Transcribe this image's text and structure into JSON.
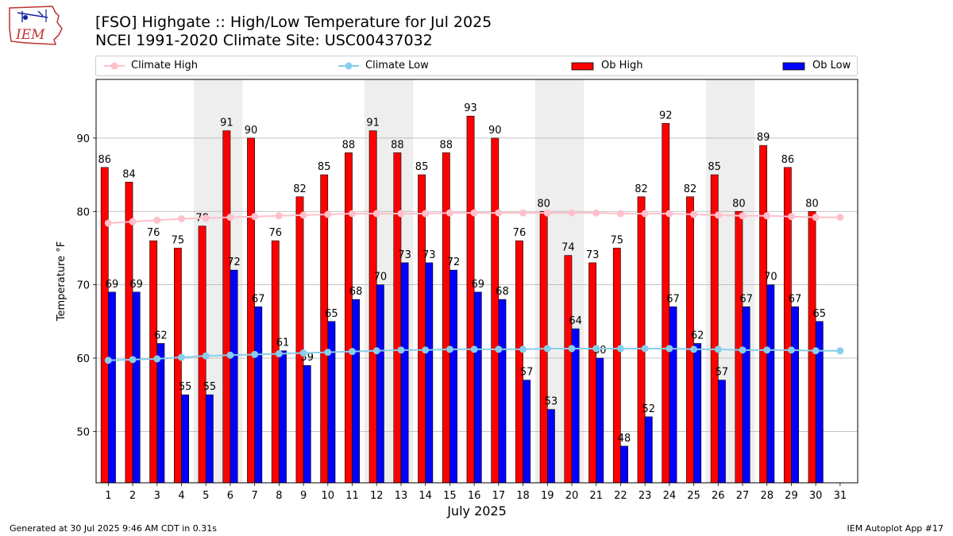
{
  "header": {
    "title_line1": "[FSO] Highgate :: High/Low Temperature for Jul 2025",
    "title_line2": "NCEI 1991-2020 Climate Site: USC00437032",
    "logo_text": "IEM"
  },
  "footer": {
    "generated": "Generated at 30 Jul 2025 9:46 AM CDT in 0.31s",
    "app": "IEM Autoplot App #17"
  },
  "legend": [
    {
      "label": "Climate High",
      "kind": "line",
      "color": "#ffc0cb"
    },
    {
      "label": "Climate Low",
      "kind": "line",
      "color": "#87ceeb"
    },
    {
      "label": "Ob High",
      "kind": "bar",
      "color": "#ff0000"
    },
    {
      "label": "Ob Low",
      "kind": "bar",
      "color": "#0000ff"
    }
  ],
  "chart_data": {
    "type": "bar",
    "xlabel": "July 2025",
    "ylabel": "Temperature °F",
    "ylim": [
      43,
      98
    ],
    "yticks": [
      50,
      60,
      70,
      80,
      90
    ],
    "grid": "horizontal",
    "legend_position": "top",
    "categories": [
      1,
      2,
      3,
      4,
      5,
      6,
      7,
      8,
      9,
      10,
      11,
      12,
      13,
      14,
      15,
      16,
      17,
      18,
      19,
      20,
      21,
      22,
      23,
      24,
      25,
      26,
      27,
      28,
      29,
      30,
      31
    ],
    "weekend_days": [
      5,
      6,
      12,
      13,
      19,
      20,
      26,
      27
    ],
    "series": [
      {
        "name": "Ob High",
        "kind": "bar",
        "color": "#ff0000",
        "values": [
          86,
          84,
          76,
          75,
          78,
          91,
          90,
          76,
          82,
          85,
          88,
          91,
          88,
          85,
          88,
          93,
          90,
          76,
          80,
          74,
          73,
          75,
          82,
          92,
          82,
          85,
          80,
          89,
          86,
          80,
          null
        ]
      },
      {
        "name": "Ob Low",
        "kind": "bar",
        "color": "#0000ff",
        "values": [
          69,
          69,
          62,
          55,
          55,
          72,
          67,
          61,
          59,
          65,
          68,
          70,
          73,
          73,
          72,
          69,
          68,
          57,
          53,
          64,
          60,
          48,
          52,
          67,
          62,
          57,
          67,
          70,
          67,
          65,
          null
        ]
      },
      {
        "name": "Climate High",
        "kind": "line",
        "color": "#ffc0cb",
        "values": [
          78.4,
          78.6,
          78.8,
          79.0,
          79.1,
          79.2,
          79.3,
          79.4,
          79.5,
          79.6,
          79.7,
          79.7,
          79.7,
          79.7,
          79.8,
          79.8,
          79.8,
          79.8,
          79.8,
          79.8,
          79.8,
          79.7,
          79.7,
          79.7,
          79.6,
          79.5,
          79.4,
          79.4,
          79.3,
          79.2,
          79.2
        ]
      },
      {
        "name": "Climate Low",
        "kind": "line",
        "color": "#87ceeb",
        "values": [
          59.7,
          59.8,
          59.9,
          60.1,
          60.3,
          60.4,
          60.5,
          60.6,
          60.7,
          60.8,
          60.9,
          61.0,
          61.1,
          61.1,
          61.2,
          61.2,
          61.2,
          61.2,
          61.3,
          61.3,
          61.3,
          61.3,
          61.3,
          61.3,
          61.2,
          61.2,
          61.1,
          61.1,
          61.1,
          61.0,
          61.0
        ]
      }
    ]
  }
}
